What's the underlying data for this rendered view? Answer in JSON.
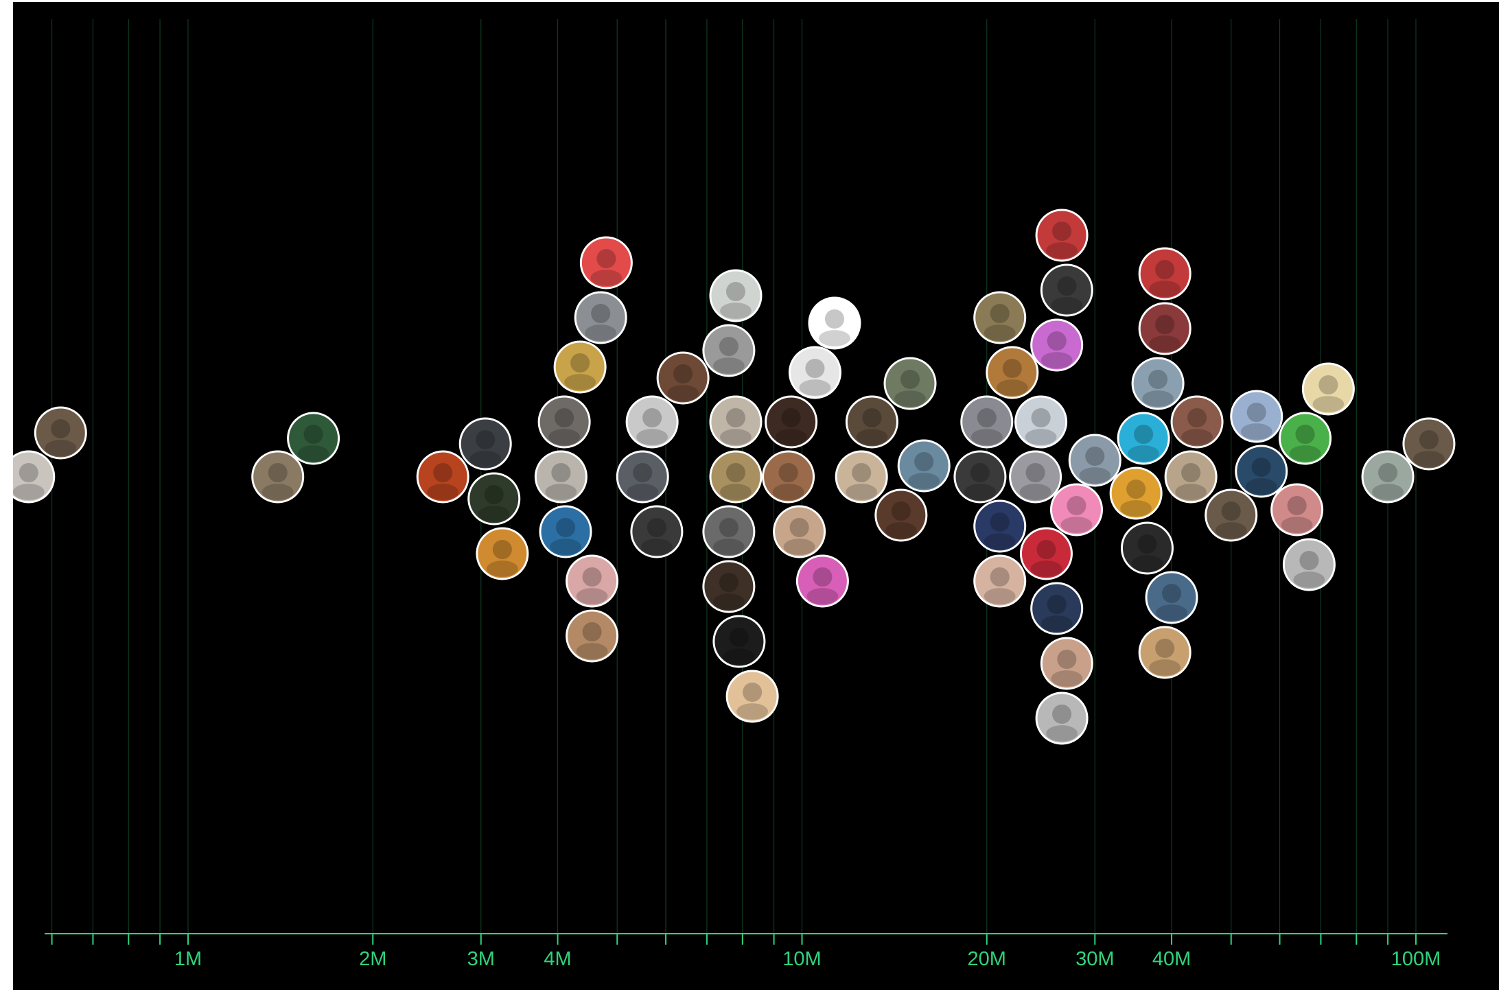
{
  "chart_data": {
    "type": "scatter",
    "title": "",
    "xlabel": "",
    "ylabel": "",
    "x_scale": "log",
    "xlim": [
      500000,
      110000000
    ],
    "grid": true,
    "x_ticks": [
      {
        "value": 1000000,
        "label": "1M"
      },
      {
        "value": 2000000,
        "label": "2M"
      },
      {
        "value": 3000000,
        "label": "3M"
      },
      {
        "value": 4000000,
        "label": "4M"
      },
      {
        "value": 10000000,
        "label": "10M"
      },
      {
        "value": 20000000,
        "label": "20M"
      },
      {
        "value": 30000000,
        "label": "30M"
      },
      {
        "value": 40000000,
        "label": "40M"
      },
      {
        "value": 100000000,
        "label": "100M"
      }
    ],
    "minor_ticks": [
      600000,
      700000,
      800000,
      900000,
      5000000,
      6000000,
      7000000,
      8000000,
      9000000,
      50000000,
      60000000,
      70000000,
      80000000,
      90000000
    ],
    "points": [
      {
        "x": 550000,
        "fill": "#c9c4be"
      },
      {
        "x": 620000,
        "fill": "#6b5a48"
      },
      {
        "x": 1400000,
        "fill": "#8a7a63"
      },
      {
        "x": 1600000,
        "fill": "#2f5a3a"
      },
      {
        "x": 2600000,
        "fill": "#b8431f"
      },
      {
        "x": 3050000,
        "fill": "#3b3f44"
      },
      {
        "x": 3150000,
        "fill": "#2e3b2a"
      },
      {
        "x": 3250000,
        "fill": "#d08a2f"
      },
      {
        "x": 4050000,
        "fill": "#b9b4ac"
      },
      {
        "x": 4100000,
        "fill": "#6e6a66"
      },
      {
        "x": 4120000,
        "fill": "#2b6fa5"
      },
      {
        "x": 4350000,
        "fill": "#c8a34a"
      },
      {
        "x": 4550000,
        "fill": "#d8a7a6"
      },
      {
        "x": 4550000,
        "fill": "#b48a66"
      },
      {
        "x": 4700000,
        "fill": "#8b8f94"
      },
      {
        "x": 4800000,
        "fill": "#e24b4a"
      },
      {
        "x": 5500000,
        "fill": "#5a5f66"
      },
      {
        "x": 5700000,
        "fill": "#c9c9c9"
      },
      {
        "x": 5800000,
        "fill": "#3a3a3a"
      },
      {
        "x": 6400000,
        "fill": "#6e4a36"
      },
      {
        "x": 7800000,
        "fill": "#a89060"
      },
      {
        "x": 7800000,
        "fill": "#c0b6a8"
      },
      {
        "x": 7600000,
        "fill": "#6a6a6a"
      },
      {
        "x": 7600000,
        "fill": "#3e3026"
      },
      {
        "x": 7600000,
        "fill": "#9a9a9a"
      },
      {
        "x": 7900000,
        "fill": "#1c1c1c"
      },
      {
        "x": 7800000,
        "fill": "#d0d4d0"
      },
      {
        "x": 8300000,
        "fill": "#e2c199"
      },
      {
        "x": 9500000,
        "fill": "#9a6a4a"
      },
      {
        "x": 9600000,
        "fill": "#3d2a22"
      },
      {
        "x": 9900000,
        "fill": "#c7a58a"
      },
      {
        "x": 10500000,
        "fill": "#e6e6e6"
      },
      {
        "x": 10800000,
        "fill": "#d85fb8"
      },
      {
        "x": 11300000,
        "fill": "#ffffff"
      },
      {
        "x": 12500000,
        "fill": "#c9b49a"
      },
      {
        "x": 13000000,
        "fill": "#5a4a3a"
      },
      {
        "x": 14500000,
        "fill": "#5a3a2a"
      },
      {
        "x": 15000000,
        "fill": "#6f7a62"
      },
      {
        "x": 15800000,
        "fill": "#6a8aa0"
      },
      {
        "x": 19500000,
        "fill": "#3a3a3a"
      },
      {
        "x": 20000000,
        "fill": "#8a8a92"
      },
      {
        "x": 21000000,
        "fill": "#2a3a66"
      },
      {
        "x": 21000000,
        "fill": "#d6b3a0"
      },
      {
        "x": 22000000,
        "fill": "#b27a3a"
      },
      {
        "x": 21000000,
        "fill": "#8a7a55"
      },
      {
        "x": 24000000,
        "fill": "#9a9aa0"
      },
      {
        "x": 24500000,
        "fill": "#c9d0d8"
      },
      {
        "x": 25000000,
        "fill": "#c92a3a"
      },
      {
        "x": 26000000,
        "fill": "#c96ad0"
      },
      {
        "x": 26000000,
        "fill": "#2a3a5a"
      },
      {
        "x": 27000000,
        "fill": "#3a3a3a"
      },
      {
        "x": 27000000,
        "fill": "#c9a08a"
      },
      {
        "x": 26500000,
        "fill": "#c23a3a"
      },
      {
        "x": 26500000,
        "fill": "#b8b8b8"
      },
      {
        "x": 28000000,
        "fill": "#f08ab8"
      },
      {
        "x": 30000000,
        "fill": "#8a9aa8"
      },
      {
        "x": 35000000,
        "fill": "#e0a030"
      },
      {
        "x": 36000000,
        "fill": "#2ab0d8"
      },
      {
        "x": 36500000,
        "fill": "#2a2a2a"
      },
      {
        "x": 38000000,
        "fill": "#8aa0b0"
      },
      {
        "x": 40000000,
        "fill": "#4a6a8a"
      },
      {
        "x": 39000000,
        "fill": "#8a3a3a"
      },
      {
        "x": 39000000,
        "fill": "#c8a070"
      },
      {
        "x": 39000000,
        "fill": "#c23a3a"
      },
      {
        "x": 43000000,
        "fill": "#b8a48a"
      },
      {
        "x": 44000000,
        "fill": "#8a5a4a"
      },
      {
        "x": 50000000,
        "fill": "#6a5a4a"
      },
      {
        "x": 56000000,
        "fill": "#2a4a6a"
      },
      {
        "x": 55000000,
        "fill": "#9ab0d0"
      },
      {
        "x": 64000000,
        "fill": "#d08a8a"
      },
      {
        "x": 66000000,
        "fill": "#4ab04a"
      },
      {
        "x": 67000000,
        "fill": "#b8b8b8"
      },
      {
        "x": 72000000,
        "fill": "#e8d8a8"
      },
      {
        "x": 90000000,
        "fill": "#9aa8a0"
      },
      {
        "x": 105000000,
        "fill": "#6a5a4a"
      }
    ]
  }
}
